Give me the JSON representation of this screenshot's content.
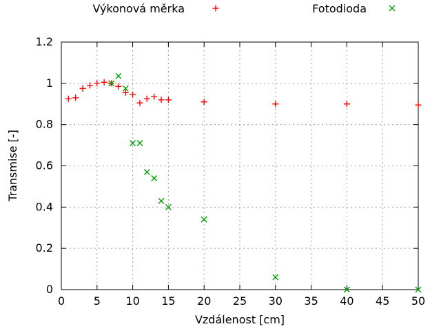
{
  "chart_data": {
    "type": "scatter",
    "title": "",
    "xlabel": "Vzdálenost [cm]",
    "ylabel": "Transmise [-]",
    "xlim": [
      0,
      50
    ],
    "ylim": [
      0,
      1.2
    ],
    "xticks": [
      0,
      5,
      10,
      15,
      20,
      25,
      30,
      35,
      40,
      45,
      50
    ],
    "xtick_labels": [
      "0",
      "5",
      "10",
      "15",
      "20",
      "25",
      "30",
      "35",
      "40",
      "45",
      "50"
    ],
    "yticks": [
      0,
      0.2,
      0.4,
      0.6,
      0.8,
      1,
      1.2
    ],
    "ytick_labels": [
      "0",
      "0.2",
      "0.4",
      "0.6",
      "0.8",
      "1",
      "1.2"
    ],
    "grid": true,
    "grid_style": "dashed",
    "legend_position": "top-outside",
    "axis_color": "#000000",
    "grid_color": "#9e9e9e",
    "text_color": "#000000",
    "series": [
      {
        "name": "Výkonová měrka",
        "marker": "plus",
        "color": "#ff0000",
        "points": [
          [
            1,
            0.925
          ],
          [
            2,
            0.93
          ],
          [
            3,
            0.975
          ],
          [
            4,
            0.99
          ],
          [
            5,
            1.0
          ],
          [
            6,
            1.005
          ],
          [
            7,
            1.0
          ],
          [
            8,
            0.985
          ],
          [
            9,
            0.955
          ],
          [
            10,
            0.945
          ],
          [
            11,
            0.905
          ],
          [
            12,
            0.925
          ],
          [
            13,
            0.935
          ],
          [
            14,
            0.92
          ],
          [
            15,
            0.92
          ],
          [
            20,
            0.91
          ],
          [
            30,
            0.9
          ],
          [
            40,
            0.9
          ],
          [
            50,
            0.895
          ]
        ]
      },
      {
        "name": "Fotodioda",
        "marker": "cross",
        "color": "#00a000",
        "points": [
          [
            7,
            1.0
          ],
          [
            8,
            1.035
          ],
          [
            9,
            0.975
          ],
          [
            10,
            0.71
          ],
          [
            11,
            0.71
          ],
          [
            12,
            0.57
          ],
          [
            13,
            0.54
          ],
          [
            14,
            0.43
          ],
          [
            15,
            0.4
          ],
          [
            20,
            0.34
          ],
          [
            30,
            0.06
          ],
          [
            40,
            0
          ],
          [
            50,
            0
          ]
        ]
      }
    ]
  }
}
